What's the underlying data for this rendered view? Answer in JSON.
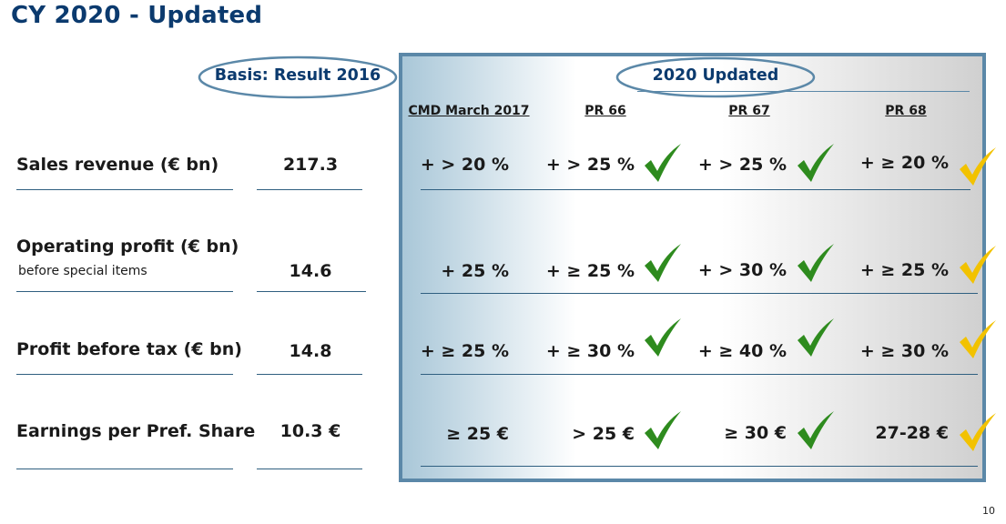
{
  "title": "CY 2020 - Updated",
  "basis_label": "Basis: Result 2016",
  "updated_label": "2020 Updated",
  "columns": [
    "CMD March 2017",
    "PR 66",
    "PR 67",
    "PR 68"
  ],
  "rows": [
    {
      "label": "Sales revenue (€ bn)",
      "sub": "",
      "basis": "217.3",
      "cells": [
        "+ > 20 %",
        "+ > 25 %",
        "+ > 25 %",
        "+ ≥ 20 %"
      ]
    },
    {
      "label": "Operating profit (€ bn)",
      "sub": "before special items",
      "basis": "14.6",
      "cells": [
        "+ 25 %",
        "+ ≥ 25 %",
        "+ > 30 %",
        "+ ≥ 25 %"
      ]
    },
    {
      "label": "Profit before tax (€ bn)",
      "sub": "",
      "basis": "14.8",
      "cells": [
        "+ ≥ 25 %",
        "+ ≥ 30 %",
        "+ ≥ 40 %",
        "+ ≥ 30 %"
      ]
    },
    {
      "label": "Earnings per Pref. Share",
      "sub": "",
      "basis": "10.3 €",
      "cells": [
        "≥ 25 €",
        "> 25 €",
        "≥ 30 €",
        "27-28 €"
      ]
    }
  ],
  "check_colors": {
    "pr66": "#2e8b1e",
    "pr67": "#2e8b1e",
    "pr68": "#f2c200"
  },
  "page_number": "10"
}
